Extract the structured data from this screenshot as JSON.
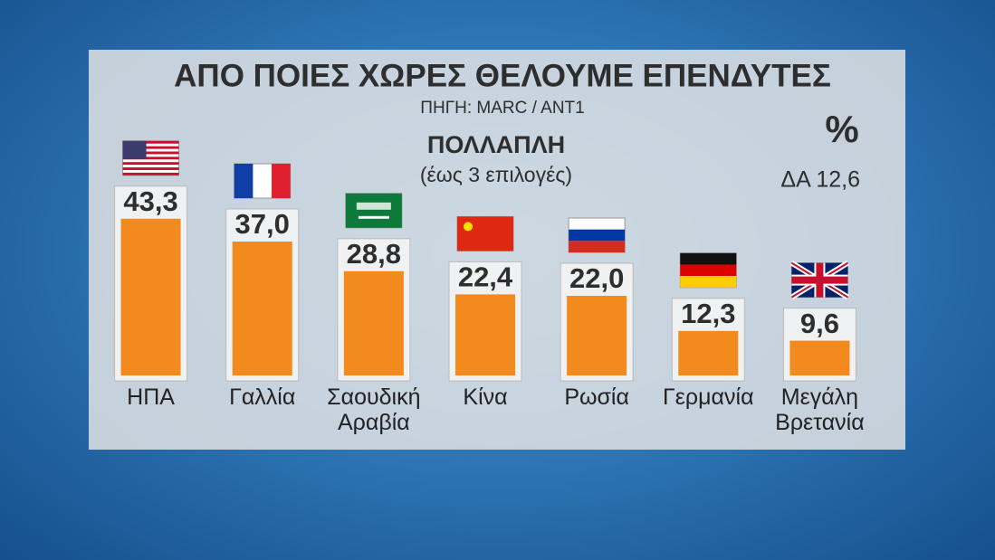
{
  "chart_data": {
    "type": "bar",
    "title": "ΑΠΟ ΠΟΙΕΣ ΧΩΡΕΣ ΘΕΛΟΥΜΕ ΕΠΕΝΔΥΤΕΣ",
    "subtitle": "ΠΗΓΗ: MARC / ANT1",
    "question_type": "ΠΟΛΛΑΠΛΗ",
    "question_note": "(έως 3 επιλογές)",
    "unit": "%",
    "annotation": "ΔΑ 12,6",
    "categories": [
      "ΗΠΑ",
      "Γαλλία",
      "Σαουδική Αραβία",
      "Κίνα",
      "Ρωσία",
      "Γερμανία",
      "Μεγάλη Βρετανία"
    ],
    "values": [
      43.3,
      37.0,
      28.8,
      22.4,
      22.0,
      12.3,
      9.6
    ],
    "value_labels": [
      "43,3",
      "37,0",
      "28,8",
      "22,4",
      "22,0",
      "12,3",
      "9,6"
    ],
    "color": "#f28a1e",
    "ylim": [
      0,
      50
    ]
  }
}
